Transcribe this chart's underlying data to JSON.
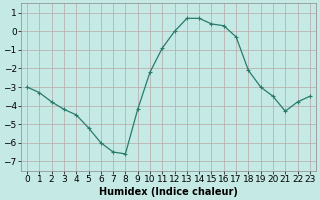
{
  "x": [
    0,
    1,
    2,
    3,
    4,
    5,
    6,
    7,
    8,
    9,
    10,
    11,
    12,
    13,
    14,
    15,
    16,
    17,
    18,
    19,
    20,
    21,
    22,
    23
  ],
  "y": [
    -3.0,
    -3.3,
    -3.8,
    -4.2,
    -4.5,
    -5.2,
    -6.0,
    -6.5,
    -6.6,
    -4.2,
    -2.2,
    -0.9,
    0.0,
    0.7,
    0.7,
    0.4,
    0.3,
    -0.3,
    -2.1,
    -3.0,
    -3.5,
    -4.3,
    -3.8,
    -3.5
  ],
  "line_color": "#2a7a6a",
  "marker": "+",
  "marker_size": 3,
  "marker_lw": 0.8,
  "bg_color": "#c5eae6",
  "grid_color_major": "#b8a8a8",
  "grid_color_minor": "#d8c8c8",
  "xlabel": "Humidex (Indice chaleur)",
  "ylim": [
    -7.5,
    1.5
  ],
  "xlim": [
    -0.5,
    23.5
  ],
  "yticks": [
    -7,
    -6,
    -5,
    -4,
    -3,
    -2,
    -1,
    0,
    1
  ],
  "xtick_labels": [
    "0",
    "1",
    "2",
    "3",
    "4",
    "5",
    "6",
    "7",
    "8",
    "9",
    "10",
    "11",
    "12",
    "13",
    "14",
    "15",
    "16",
    "17",
    "18",
    "19",
    "20",
    "21",
    "22",
    "23"
  ],
  "xlabel_fontsize": 7,
  "tick_fontsize": 6.5,
  "line_width": 0.9
}
